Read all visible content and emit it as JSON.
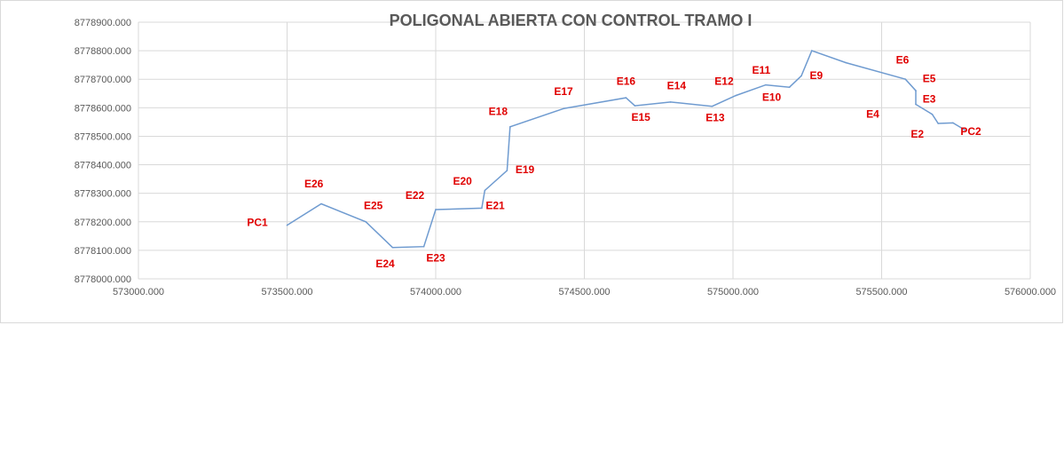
{
  "chart_data": {
    "type": "line",
    "title": "POLIGONAL ABIERTA CON CONTROL TRAMO I",
    "xlabel": "",
    "ylabel": "",
    "xlim": [
      573000,
      576000
    ],
    "ylim": [
      8778000,
      8778900
    ],
    "grid": true,
    "x_ticks": [
      "573000.000",
      "573500.000",
      "574000.000",
      "574500.000",
      "575000.000",
      "575500.000",
      "576000.000"
    ],
    "y_ticks": [
      "8778000.000",
      "8778100.000",
      "8778200.000",
      "8778300.000",
      "8778400.000",
      "8778500.000",
      "8778600.000",
      "8778700.000",
      "8778800.000",
      "8778900.000"
    ],
    "line_color": "#6f9bd0",
    "label_color": "#e00000",
    "series": [
      {
        "points": [
          {
            "x": 573500,
            "y": 8778188
          },
          {
            "x": 573615,
            "y": 8778263
          },
          {
            "x": 573765,
            "y": 8778200
          },
          {
            "x": 573855,
            "y": 8778110
          },
          {
            "x": 573960,
            "y": 8778113
          },
          {
            "x": 574000,
            "y": 8778243
          },
          {
            "x": 574155,
            "y": 8778248
          },
          {
            "x": 574165,
            "y": 8778310
          },
          {
            "x": 574240,
            "y": 8778380
          },
          {
            "x": 574250,
            "y": 8778533
          },
          {
            "x": 574430,
            "y": 8778597
          },
          {
            "x": 574640,
            "y": 8778635
          },
          {
            "x": 574670,
            "y": 8778607
          },
          {
            "x": 574790,
            "y": 8778620
          },
          {
            "x": 574930,
            "y": 8778605
          },
          {
            "x": 575010,
            "y": 8778643
          },
          {
            "x": 575110,
            "y": 8778680
          },
          {
            "x": 575190,
            "y": 8778672
          },
          {
            "x": 575230,
            "y": 8778712
          },
          {
            "x": 575265,
            "y": 8778800
          },
          {
            "x": 575380,
            "y": 8778758
          },
          {
            "x": 575580,
            "y": 8778700
          },
          {
            "x": 575615,
            "y": 8778660
          },
          {
            "x": 575615,
            "y": 8778612
          },
          {
            "x": 575670,
            "y": 8778577
          },
          {
            "x": 575690,
            "y": 8778545
          },
          {
            "x": 575740,
            "y": 8778547
          },
          {
            "x": 575780,
            "y": 8778522
          }
        ]
      }
    ],
    "annotations": [
      {
        "text": "PC1",
        "x": 573400,
        "y": 8778185
      },
      {
        "text": "E26",
        "x": 573590,
        "y": 8778320
      },
      {
        "text": "E25",
        "x": 573790,
        "y": 8778245
      },
      {
        "text": "E24",
        "x": 573830,
        "y": 8778040
      },
      {
        "text": "E23",
        "x": 574000,
        "y": 8778060
      },
      {
        "text": "E22",
        "x": 573930,
        "y": 8778280
      },
      {
        "text": "E21",
        "x": 574200,
        "y": 8778245
      },
      {
        "text": "E20",
        "x": 574090,
        "y": 8778330
      },
      {
        "text": "E19",
        "x": 574300,
        "y": 8778370
      },
      {
        "text": "E18",
        "x": 574210,
        "y": 8778575
      },
      {
        "text": "E17",
        "x": 574430,
        "y": 8778645
      },
      {
        "text": "E16",
        "x": 574640,
        "y": 8778680
      },
      {
        "text": "E15",
        "x": 574690,
        "y": 8778555
      },
      {
        "text": "E14",
        "x": 574810,
        "y": 8778665
      },
      {
        "text": "E13",
        "x": 574940,
        "y": 8778552
      },
      {
        "text": "E12",
        "x": 574970,
        "y": 8778680
      },
      {
        "text": "E11",
        "x": 575095,
        "y": 8778720
      },
      {
        "text": "E10",
        "x": 575130,
        "y": 8778625
      },
      {
        "text": "E9",
        "x": 575280,
        "y": 8778700
      },
      {
        "text": "E6",
        "x": 575570,
        "y": 8778755
      },
      {
        "text": "E5",
        "x": 575660,
        "y": 8778690
      },
      {
        "text": "E4",
        "x": 575470,
        "y": 8778565
      },
      {
        "text": "E3",
        "x": 575660,
        "y": 8778618
      },
      {
        "text": "E2",
        "x": 575620,
        "y": 8778495
      },
      {
        "text": "PC2",
        "x": 575800,
        "y": 8778505
      }
    ]
  }
}
